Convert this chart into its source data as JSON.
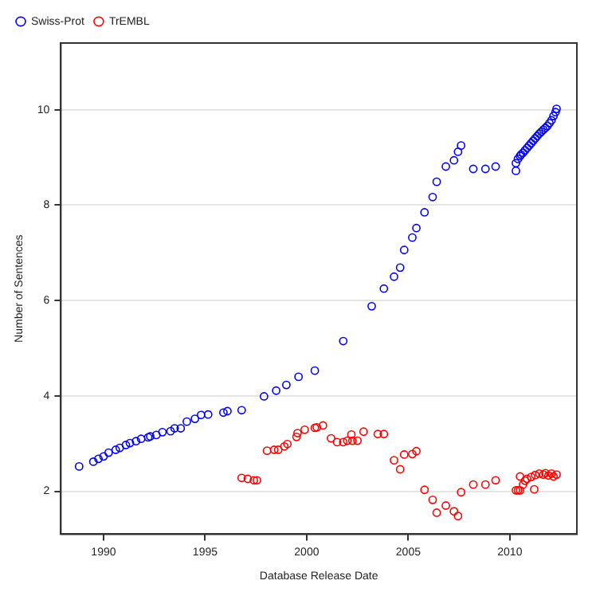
{
  "chart_data": {
    "type": "scatter",
    "xlabel": "Database Release Date",
    "ylabel": "Number of Sentences",
    "xlim": [
      1987.9,
      2013.3
    ],
    "ylim": [
      1.1,
      11.4
    ],
    "xticks": [
      1990,
      1995,
      2000,
      2005,
      2010
    ],
    "yticks": [
      2,
      4,
      6,
      8,
      10
    ],
    "grid": "y",
    "legend": "top left",
    "marker": "circle",
    "series": [
      {
        "name": "Swiss-Prot",
        "color": "#0000ff",
        "x": [
          1988.8,
          1989.5,
          1989.75,
          1990.0,
          1990.25,
          1990.6,
          1990.8,
          1991.1,
          1991.3,
          1991.6,
          1991.85,
          1992.2,
          1992.3,
          1992.6,
          1992.9,
          1993.3,
          1993.5,
          1993.8,
          1994.1,
          1994.5,
          1994.8,
          1995.15,
          1995.9,
          1996.1,
          1996.8,
          1997.9,
          1998.5,
          1999.0,
          1999.6,
          2000.4,
          2001.8,
          2003.2,
          2003.8,
          2004.3,
          2004.6,
          2004.8,
          2005.2,
          2005.4,
          2005.8,
          2006.2,
          2006.4,
          2006.85,
          2007.25,
          2007.45,
          2007.6,
          2008.2,
          2008.8,
          2009.3,
          2010.3,
          2010.3,
          2010.4,
          2010.5,
          2010.55,
          2010.65,
          2010.75,
          2010.85,
          2010.95,
          2011.05,
          2011.15,
          2011.25,
          2011.35,
          2011.45,
          2011.55,
          2011.65,
          2011.75,
          2011.85,
          2011.95,
          2012.05,
          2012.15,
          2012.25,
          2012.3
        ],
        "values": [
          2.52,
          2.62,
          2.68,
          2.73,
          2.81,
          2.87,
          2.91,
          2.97,
          3.01,
          3.05,
          3.1,
          3.13,
          3.15,
          3.18,
          3.24,
          3.26,
          3.32,
          3.32,
          3.46,
          3.52,
          3.6,
          3.61,
          3.65,
          3.68,
          3.7,
          3.99,
          4.11,
          4.23,
          4.4,
          4.53,
          5.15,
          5.88,
          6.25,
          6.5,
          6.69,
          7.06,
          7.32,
          7.52,
          7.85,
          8.17,
          8.49,
          8.81,
          8.94,
          9.12,
          9.25,
          8.76,
          8.76,
          8.81,
          8.72,
          8.88,
          8.97,
          9.03,
          9.06,
          9.1,
          9.15,
          9.2,
          9.25,
          9.3,
          9.35,
          9.4,
          9.45,
          9.5,
          9.54,
          9.58,
          9.62,
          9.66,
          9.72,
          9.78,
          9.87,
          9.95,
          10.02
        ]
      },
      {
        "name": "TrEMBL",
        "color": "#ff0000",
        "x": [
          1996.8,
          1997.1,
          1997.4,
          1997.55,
          1998.05,
          1998.4,
          1998.6,
          1998.9,
          1999.05,
          1999.5,
          1999.55,
          1999.9,
          2000.4,
          2000.5,
          2000.8,
          2001.2,
          2001.5,
          2001.8,
          2002.0,
          2002.2,
          2002.25,
          2002.5,
          2002.8,
          2003.5,
          2003.8,
          2004.3,
          2004.6,
          2004.8,
          2005.2,
          2005.4,
          2005.8,
          2006.2,
          2006.4,
          2006.85,
          2007.25,
          2007.45,
          2007.6,
          2008.2,
          2008.8,
          2009.3,
          2010.3,
          2010.4,
          2010.5,
          2010.5,
          2010.65,
          2010.75,
          2010.85,
          2011.05,
          2011.2,
          2011.25,
          2011.45,
          2011.65,
          2011.75,
          2011.9,
          2012.05,
          2012.15,
          2012.3
        ],
        "values": [
          2.28,
          2.26,
          2.23,
          2.23,
          2.85,
          2.87,
          2.87,
          2.94,
          2.99,
          3.14,
          3.22,
          3.29,
          3.33,
          3.34,
          3.38,
          3.11,
          3.03,
          3.03,
          3.06,
          3.19,
          3.06,
          3.06,
          3.25,
          3.2,
          3.2,
          2.65,
          2.46,
          2.77,
          2.78,
          2.84,
          2.03,
          1.82,
          1.55,
          1.7,
          1.58,
          1.48,
          1.98,
          2.14,
          2.14,
          2.23,
          2.02,
          2.02,
          2.02,
          2.31,
          2.14,
          2.22,
          2.26,
          2.3,
          2.04,
          2.34,
          2.37,
          2.35,
          2.38,
          2.33,
          2.37,
          2.31,
          2.35
        ]
      }
    ]
  }
}
